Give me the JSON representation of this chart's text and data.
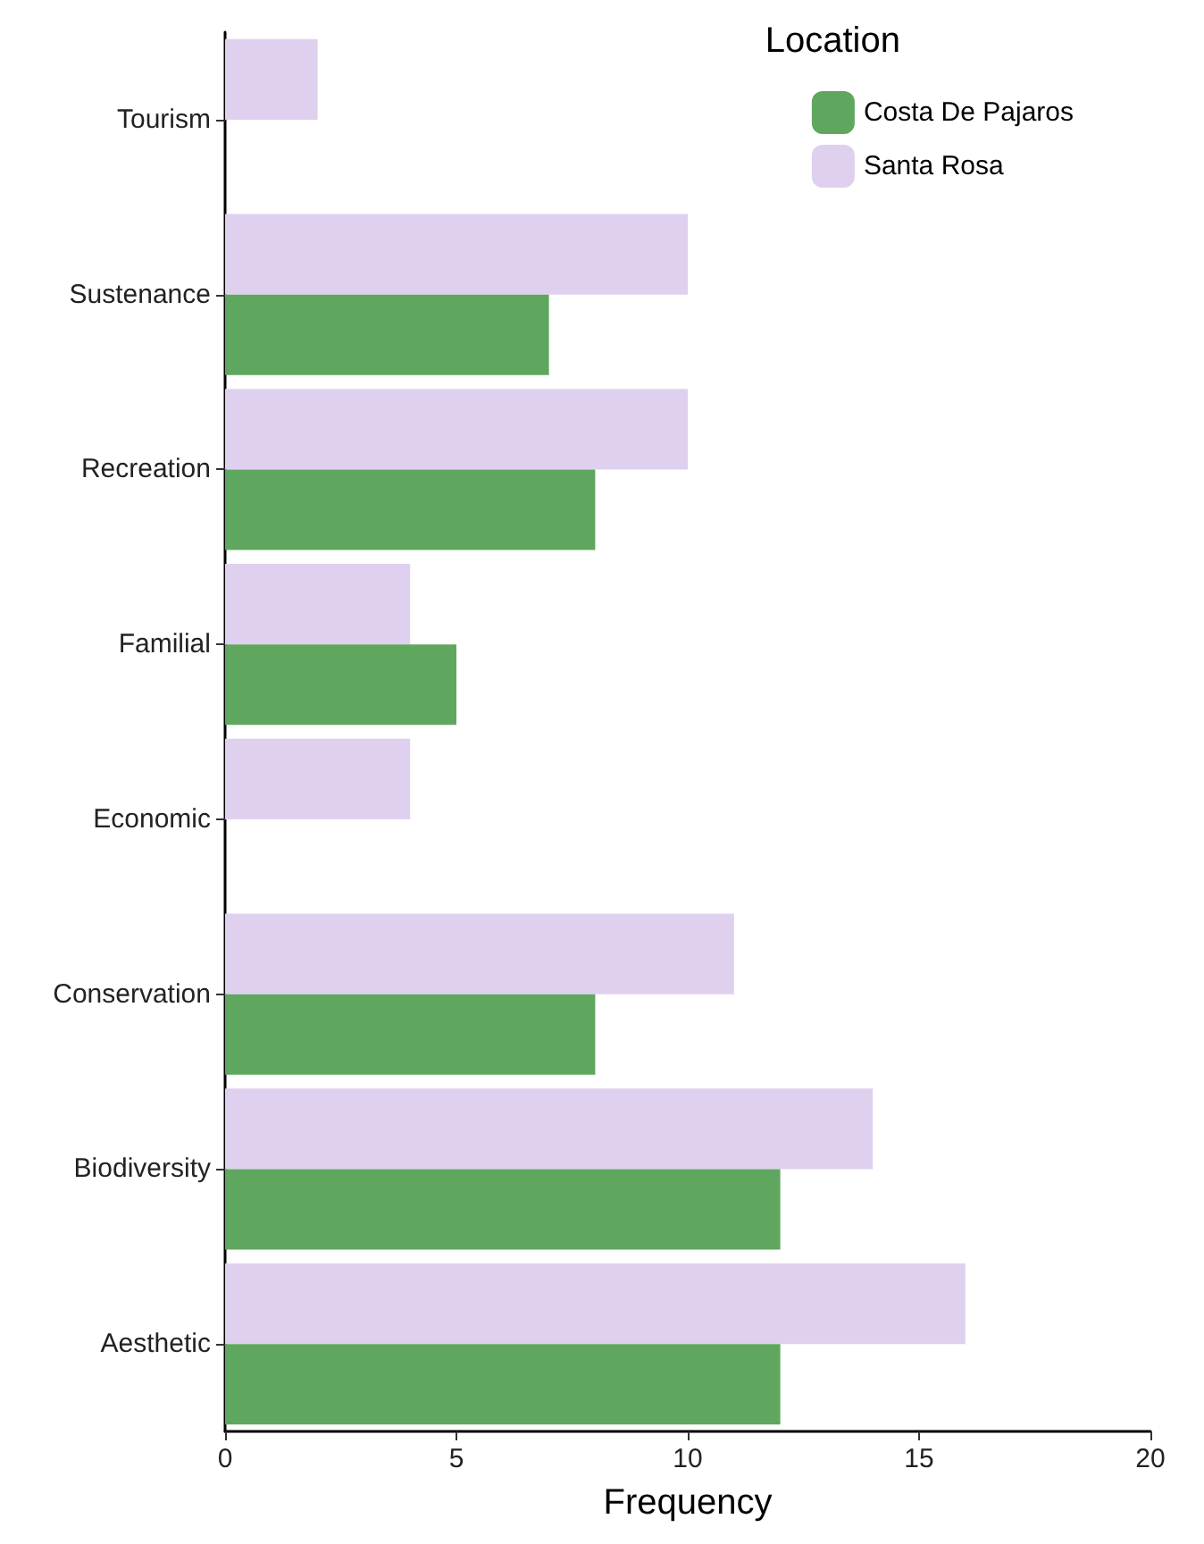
{
  "chart_data": {
    "type": "bar",
    "orientation": "horizontal",
    "categories": [
      "Tourism",
      "Sustenance",
      "Recreation",
      "Familial",
      "Economic",
      "Conservation",
      "Biodiversity",
      "Aesthetic"
    ],
    "series": [
      {
        "name": "Costa De Pajaros",
        "color": "#5fa75e",
        "values": [
          null,
          7,
          8,
          5,
          null,
          8,
          12,
          12
        ]
      },
      {
        "name": "Santa Rosa",
        "color": "#dfd0ef",
        "values": [
          2,
          10,
          10,
          4,
          4,
          11,
          14,
          16
        ]
      }
    ],
    "xlabel": "Frequency",
    "legend_title": "Location",
    "legend": "top right",
    "grid": false,
    "xlim": [
      0,
      20
    ],
    "xticks": [
      0,
      5,
      10,
      15,
      20
    ]
  }
}
